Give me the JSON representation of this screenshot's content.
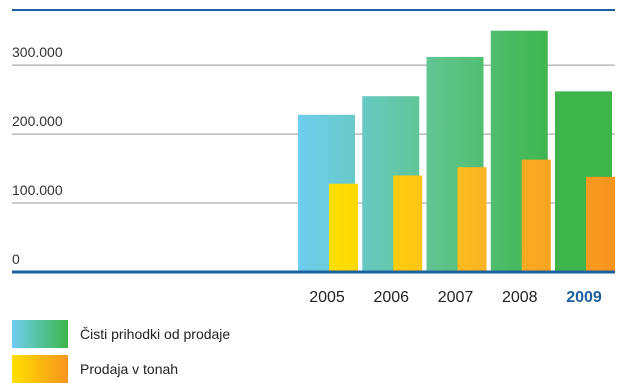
{
  "chart_data": {
    "type": "bar",
    "categories": [
      "2005",
      "2006",
      "2007",
      "2008",
      "2009"
    ],
    "highlight_category": "2009",
    "series": [
      {
        "name": "Čisti prihodki od prodaje",
        "values": [
          228000,
          255000,
          312000,
          350000,
          262000
        ]
      },
      {
        "name": "Prodaja v tonah",
        "values": [
          128000,
          140000,
          152000,
          163000,
          138000
        ]
      }
    ],
    "ylim": [
      0,
      380000
    ],
    "yticks": [
      "0",
      "100.000",
      "200.000",
      "300.000"
    ],
    "ytick_values": [
      0,
      100000,
      200000,
      300000
    ],
    "grid": true,
    "legend_placement": "bottom-left",
    "colors": {
      "series1_gradient": [
        "#6FCDF0",
        "#5EC48A",
        "#3DB54A"
      ],
      "series2_gradient": [
        "#FFE000",
        "#FBB325",
        "#F7941D"
      ],
      "axis": "#1E5FA0",
      "grid": "#999999",
      "highlight_label": "#1E5FA0"
    }
  },
  "legend": {
    "items": [
      {
        "label": "Čisti prihodki od prodaje"
      },
      {
        "label": "Prodaja v tonah"
      }
    ]
  }
}
